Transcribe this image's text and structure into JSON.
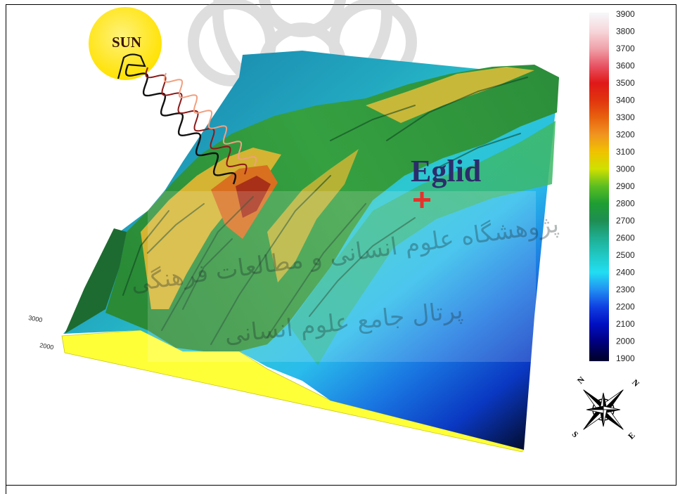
{
  "figure": {
    "sun_label": "SUN",
    "place_label": "Eglid",
    "axis_labels": [
      "3000",
      "2000"
    ],
    "compass": {
      "nw": "N",
      "ne": "N",
      "sw": "S",
      "se": "E"
    },
    "watermark": [
      "پژوهشگاه علوم انسانی و مطالعات فرهنگی",
      "پرتال جامع علوم انسانی"
    ]
  },
  "legend": {
    "values": [
      "3900",
      "3800",
      "3700",
      "3600",
      "3500",
      "3400",
      "3300",
      "3200",
      "3100",
      "3000",
      "2900",
      "2800",
      "2700",
      "2600",
      "2500",
      "2400",
      "2300",
      "2200",
      "2100",
      "2000",
      "1900"
    ],
    "colors": [
      "#f6f6f8",
      "#f6d6da",
      "#f0a2aa",
      "#e85464",
      "#e01818",
      "#e0340e",
      "#e8620e",
      "#f09420",
      "#f0c200",
      "#cfe000",
      "#5cbe22",
      "#1e9e32",
      "#1e8e52",
      "#1eae92",
      "#20c8c2",
      "#22def2",
      "#2290f2",
      "#1040e2",
      "#0010c2",
      "#000082",
      "#000032"
    ]
  },
  "colors": {
    "sun": "#ffe600",
    "place_label": "#2c2c6c",
    "marker": "#e8302a",
    "slab_side": "#ffff38"
  }
}
